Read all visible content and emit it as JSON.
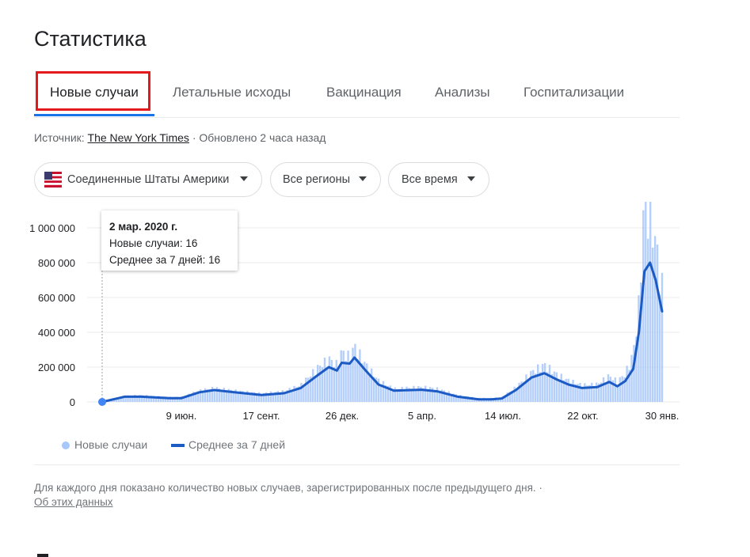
{
  "page_title": "Статистика",
  "tabs": [
    {
      "label": "Новые случаи",
      "active": true
    },
    {
      "label": "Летальные исходы",
      "active": false
    },
    {
      "label": "Вакцинация",
      "active": false
    },
    {
      "label": "Анализы",
      "active": false
    },
    {
      "label": "Госпитализации",
      "active": false
    }
  ],
  "source": {
    "prefix": "Источник: ",
    "link": "The New York Times",
    "updated": " · Обновлено 2 часа назад"
  },
  "filters": {
    "country": "Соединенные Штаты Америки",
    "region": "Все регионы",
    "period": "Все время"
  },
  "tooltip": {
    "date": "2 мар. 2020 г.",
    "cases": "Новые случаи: 16",
    "average": "Среднее за 7 дней: 16"
  },
  "legend": {
    "cases": "Новые случаи",
    "average": "Среднее за 7 дней"
  },
  "footer": {
    "note": "Для каждого дня показано количество новых случаев, зарегистрированных после предыдущего дня.  ·",
    "about_link": "Об этих данных"
  },
  "colors": {
    "accent": "#1a73e8",
    "highlight_box": "#e3191c",
    "bars": "#a8c7fa",
    "line": "#1c5bc4"
  },
  "chart_data": {
    "type": "bar",
    "y_ticks": [
      "1 000 000",
      "800 000",
      "600 000",
      "400 000",
      "200 000",
      "0"
    ],
    "x_ticks": [
      "9 июн.",
      "17 сент.",
      "26 дек.",
      "5 апр.",
      "14 июл.",
      "22 окт.",
      "30 янв."
    ],
    "ylim": [
      0,
      1100000
    ],
    "series": [
      {
        "name": "Новые случаи",
        "kind": "bar"
      },
      {
        "name": "Среднее за 7 дней",
        "kind": "line"
      }
    ],
    "x": [
      "2020-03-02",
      "2020-03-30",
      "2020-04-20",
      "2020-05-25",
      "2020-06-09",
      "2020-07-01",
      "2020-07-20",
      "2020-08-15",
      "2020-09-17",
      "2020-10-15",
      "2020-11-05",
      "2020-11-25",
      "2020-12-10",
      "2020-12-20",
      "2020-12-26",
      "2021-01-05",
      "2021-01-11",
      "2021-01-25",
      "2021-02-10",
      "2021-03-01",
      "2021-04-05",
      "2021-04-25",
      "2021-05-20",
      "2021-06-15",
      "2021-07-01",
      "2021-07-14",
      "2021-08-01",
      "2021-08-20",
      "2021-09-05",
      "2021-09-20",
      "2021-10-05",
      "2021-10-22",
      "2021-11-10",
      "2021-11-25",
      "2021-12-05",
      "2021-12-15",
      "2021-12-25",
      "2022-01-01",
      "2022-01-08",
      "2022-01-15",
      "2022-01-22",
      "2022-01-30"
    ],
    "average": [
      16,
      30000,
      30000,
      22000,
      22000,
      55000,
      68000,
      55000,
      40000,
      50000,
      80000,
      150000,
      200000,
      180000,
      225000,
      220000,
      255000,
      180000,
      100000,
      65000,
      70000,
      60000,
      30000,
      15000,
      15000,
      20000,
      70000,
      140000,
      165000,
      130000,
      100000,
      80000,
      85000,
      115000,
      90000,
      120000,
      190000,
      400000,
      750000,
      800000,
      700000,
      520000
    ],
    "daily": [
      16,
      32000,
      35000,
      25000,
      26000,
      60000,
      75000,
      60000,
      45000,
      58000,
      90000,
      180000,
      230000,
      200000,
      270000,
      240000,
      300000,
      200000,
      115000,
      70000,
      80000,
      70000,
      35000,
      20000,
      20000,
      25000,
      80000,
      160000,
      200000,
      150000,
      115000,
      90000,
      95000,
      140000,
      110000,
      150000,
      260000,
      520000,
      1100000,
      1000000,
      850000,
      620000
    ]
  }
}
